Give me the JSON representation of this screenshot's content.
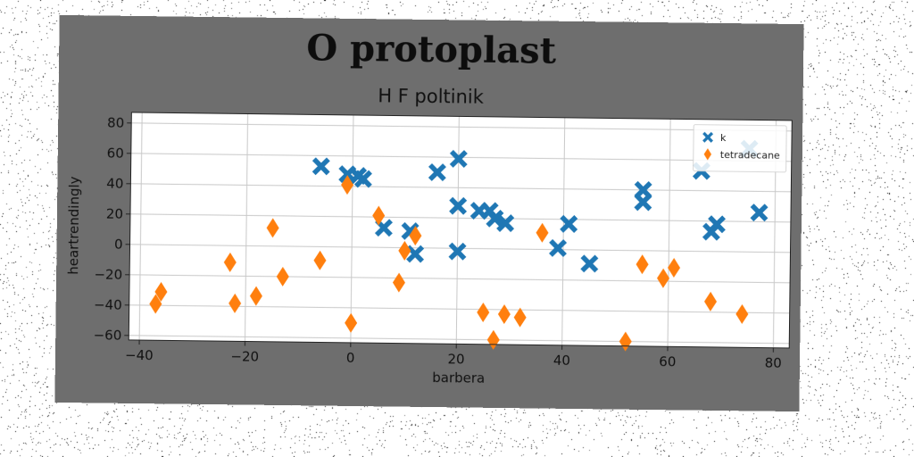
{
  "title": "O protoplast",
  "subtitle": "H F poltinik",
  "chart_data": {
    "type": "scatter",
    "title": "O protoplast",
    "subtitle": "H F poltinik",
    "xlabel": "barbera",
    "ylabel": "heartrendingly",
    "xlim": [
      -42,
      83
    ],
    "ylim": [
      -63,
      87
    ],
    "xticks": [
      -40,
      -20,
      0,
      20,
      40,
      60,
      80
    ],
    "yticks": [
      -60,
      -40,
      -20,
      0,
      20,
      40,
      60,
      80
    ],
    "xtick_labels": [
      "−40",
      "−20",
      "0",
      "20",
      "40",
      "60",
      "80"
    ],
    "ytick_labels": [
      "−60",
      "−40",
      "−20",
      "0",
      "20",
      "40",
      "60",
      "80"
    ],
    "grid": true,
    "legend_position": "top-right",
    "series": [
      {
        "name": "k",
        "marker": "x",
        "color": "#1f77b4",
        "points": [
          [
            -6,
            53
          ],
          [
            -1,
            48
          ],
          [
            1,
            47
          ],
          [
            2,
            45
          ],
          [
            6,
            13
          ],
          [
            11,
            11
          ],
          [
            12,
            -4
          ],
          [
            16,
            50
          ],
          [
            20,
            28
          ],
          [
            20,
            59
          ],
          [
            20,
            -2
          ],
          [
            24,
            25
          ],
          [
            26,
            25
          ],
          [
            27,
            20
          ],
          [
            29,
            17
          ],
          [
            39,
            1
          ],
          [
            41,
            17
          ],
          [
            45,
            -9
          ],
          [
            55,
            40
          ],
          [
            55,
            32
          ],
          [
            66,
            53
          ],
          [
            68,
            13
          ],
          [
            69,
            18
          ],
          [
            77,
            26
          ],
          [
            75,
            68
          ]
        ]
      },
      {
        "name": "tetradecane",
        "marker": "diamond",
        "color": "#ff7f0e",
        "points": [
          [
            -37,
            -39
          ],
          [
            -36,
            -31
          ],
          [
            -23,
            -11
          ],
          [
            -22,
            -38
          ],
          [
            -18,
            -33
          ],
          [
            -15,
            12
          ],
          [
            -13,
            -20
          ],
          [
            -6,
            -9
          ],
          [
            -1,
            41
          ],
          [
            0,
            -50
          ],
          [
            5,
            21
          ],
          [
            9,
            -23
          ],
          [
            10,
            -2
          ],
          [
            12,
            8
          ],
          [
            25,
            -42
          ],
          [
            27,
            -60
          ],
          [
            29,
            -43
          ],
          [
            32,
            -45
          ],
          [
            36,
            11
          ],
          [
            52,
            -60
          ],
          [
            55,
            -9
          ],
          [
            59,
            -18
          ],
          [
            61,
            -11
          ],
          [
            68,
            -33
          ],
          [
            74,
            -41
          ]
        ]
      }
    ]
  }
}
